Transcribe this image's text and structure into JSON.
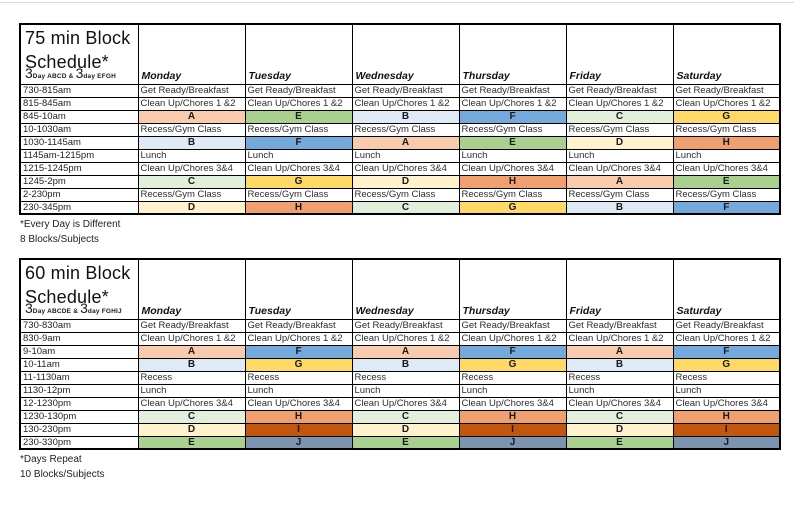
{
  "page": {
    "background": "#ffffff",
    "top_rule_color": "#d9d9d9"
  },
  "block_colors": {
    "A": "#F8CBAD",
    "B": "#DEEBF7",
    "C": "#E2EFDA",
    "D": "#FFF2CC",
    "E": "#A9D08E",
    "F": "#74A9DC",
    "G": "#FFD966",
    "H": "#F0A06E",
    "I": "#C1570E",
    "J": "#7C94B0"
  },
  "tables": [
    {
      "id": "75min",
      "title_line1": "75 min Block",
      "title_line2": "Schedule*",
      "subtitle": {
        "big1": "3",
        "small1": "Day ABCD & ",
        "big2": "3",
        "small2": "day EFGH"
      },
      "days": [
        "Monday",
        "Tuesday",
        "Wednesday",
        "Thursday",
        "Friday",
        "Saturday"
      ],
      "rows": [
        {
          "time": "730-815am",
          "type": "text",
          "cells": [
            "Get Ready/Breakfast",
            "Get Ready/Breakfast",
            "Get Ready/Breakfast",
            "Get Ready/Breakfast",
            "Get Ready/Breakfast",
            "Get Ready/Breakfast"
          ]
        },
        {
          "time": "815-845am",
          "type": "text",
          "cells": [
            "Clean Up/Chores 1 &2",
            "Clean Up/Chores 1 &2",
            "Clean Up/Chores 1 &2",
            "Clean Up/Chores 1 &2",
            "Clean Up/Chores 1 &2",
            "Clean Up/Chores 1 &2"
          ]
        },
        {
          "time": "845-10am",
          "type": "block",
          "cells": [
            "A",
            "E",
            "B",
            "F",
            "C",
            "G"
          ]
        },
        {
          "time": "10-1030am",
          "type": "text",
          "cells": [
            "Recess/Gym Class",
            "Recess/Gym Class",
            "Recess/Gym Class",
            "Recess/Gym Class",
            "Recess/Gym Class",
            "Recess/Gym Class"
          ]
        },
        {
          "time": "1030-1145am",
          "type": "block",
          "cells": [
            "B",
            "F",
            "A",
            "E",
            "D",
            "H"
          ]
        },
        {
          "time": "1145am-1215pm",
          "type": "text",
          "cells": [
            "Lunch",
            "Lunch",
            "Lunch",
            "Lunch",
            "Lunch",
            "Lunch"
          ]
        },
        {
          "time": "1215-1245pm",
          "type": "text",
          "cells": [
            "Clean Up/Chores 3&4",
            "Clean Up/Chores 3&4",
            "Clean Up/Chores 3&4",
            "Clean Up/Chores 3&4",
            "Clean Up/Chores 3&4",
            "Clean Up/Chores 3&4"
          ]
        },
        {
          "time": "1245-2pm",
          "type": "block",
          "cells": [
            "C",
            "G",
            "D",
            "H",
            "A",
            "E"
          ]
        },
        {
          "time": "2-230pm",
          "type": "text",
          "cells": [
            "Recess/Gym Class",
            "Recess/Gym Class",
            "Recess/Gym Class",
            "Recess/Gym Class",
            "Recess/Gym Class",
            "Recess/Gym Class"
          ]
        },
        {
          "time": "230-345pm",
          "type": "block",
          "cells": [
            "D",
            "H",
            "C",
            "G",
            "B",
            "F"
          ]
        }
      ],
      "footnotes": [
        "*Every Day is Different",
        "8 Blocks/Subjects"
      ]
    },
    {
      "id": "60min",
      "title_line1": "60 min Block",
      "title_line2": "Schedule*",
      "subtitle": {
        "big1": "3",
        "small1": "Day ABCDE & ",
        "big2": "3",
        "small2": "day FGHIJ"
      },
      "days": [
        "Monday",
        "Tuesday",
        "Wednesday",
        "Thursday",
        "Friday",
        "Saturday"
      ],
      "rows": [
        {
          "time": "730-830am",
          "type": "text",
          "cells": [
            "Get Ready/Breakfast",
            "Get Ready/Breakfast",
            "Get Ready/Breakfast",
            "Get Ready/Breakfast",
            "Get Ready/Breakfast",
            "Get Ready/Breakfast"
          ]
        },
        {
          "time": "830-9am",
          "type": "text",
          "cells": [
            "Clean Up/Chores 1 &2",
            "Clean Up/Chores 1 &2",
            "Clean Up/Chores 1 &2",
            "Clean Up/Chores 1 &2",
            "Clean Up/Chores 1 &2",
            "Clean Up/Chores 1 &2"
          ]
        },
        {
          "time": "9-10am",
          "type": "block",
          "cells": [
            "A",
            "F",
            "A",
            "F",
            "A",
            "F"
          ]
        },
        {
          "time": "10-11am",
          "type": "block",
          "cells": [
            "B",
            "G",
            "B",
            "G",
            "B",
            "G"
          ]
        },
        {
          "time": "11-1130am",
          "type": "text",
          "cells": [
            "Recess",
            "Recess",
            "Recess",
            "Recess",
            "Recess",
            "Recess"
          ]
        },
        {
          "time": "1130-12pm",
          "type": "text",
          "cells": [
            "Lunch",
            "Lunch",
            "Lunch",
            "Lunch",
            "Lunch",
            "Lunch"
          ]
        },
        {
          "time": "12-1230pm",
          "type": "text",
          "cells": [
            "Clean Up/Chores 3&4",
            "Clean Up/Chores 3&4",
            "Clean Up/Chores 3&4",
            "Clean Up/Chores 3&4",
            "Clean Up/Chores 3&4",
            "Clean Up/Chores 3&4"
          ]
        },
        {
          "time": "1230-130pm",
          "type": "block",
          "cells": [
            "C",
            "H",
            "C",
            "H",
            "C",
            "H"
          ]
        },
        {
          "time": "130-230pm",
          "type": "block",
          "cells": [
            "D",
            "I",
            "D",
            "I",
            "D",
            "I"
          ]
        },
        {
          "time": "230-330pm",
          "type": "block",
          "cells": [
            "E",
            "J",
            "E",
            "J",
            "E",
            "J"
          ]
        }
      ],
      "footnotes": [
        "*Days Repeat",
        "10 Blocks/Subjects"
      ]
    }
  ]
}
